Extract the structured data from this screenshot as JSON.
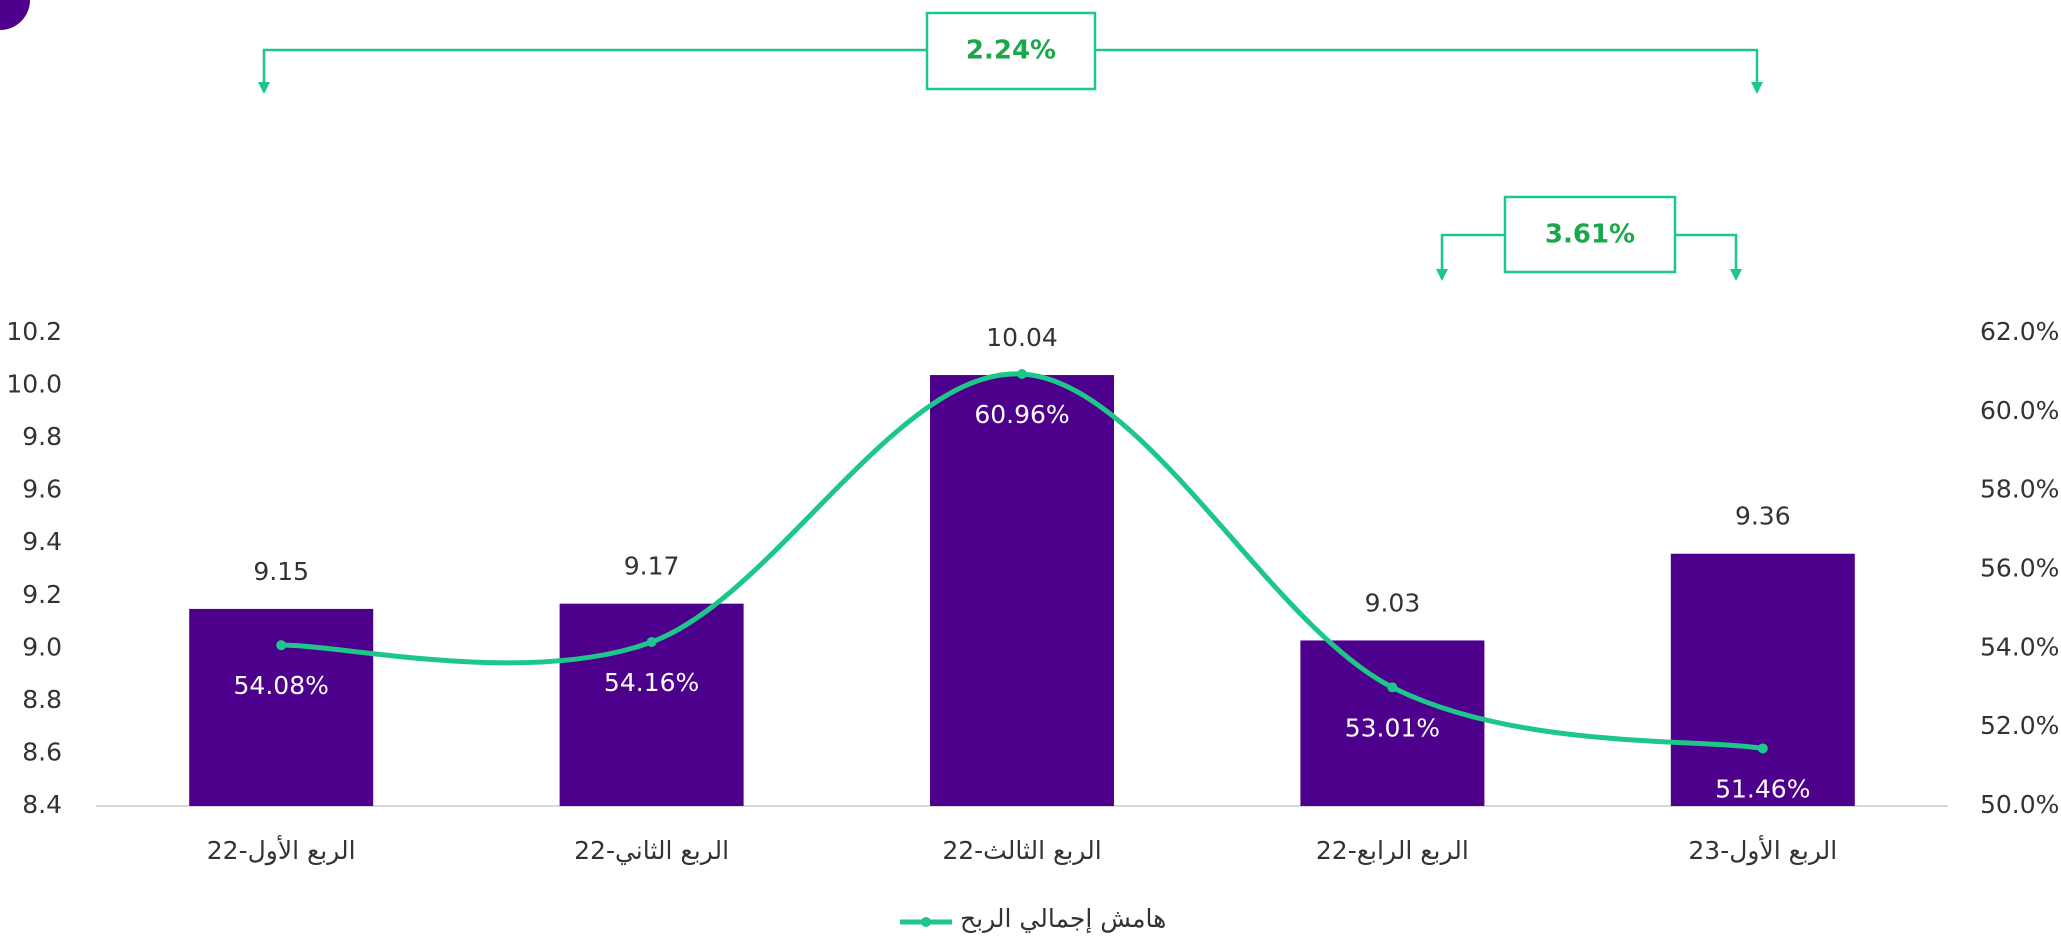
{
  "chart_data": {
    "type": "bar",
    "categories": [
      "الربع الأول-22",
      "الربع الثاني-22",
      "الربع الثالث-22",
      "الربع الرابع-22",
      "الربع الأول-23"
    ],
    "series": [
      {
        "type": "bar",
        "color": "#4d008c",
        "values": [
          9.15,
          9.17,
          10.04,
          9.03,
          9.36
        ]
      },
      {
        "type": "line",
        "name": "هامش إجمالي الربح",
        "color": "#1dc78a",
        "axis": "y2",
        "values": [
          54.08,
          54.16,
          60.96,
          53.01,
          51.46
        ],
        "value_labels": [
          "54.08%",
          "54.16%",
          "60.96%",
          "53.01%",
          "51.46%"
        ]
      }
    ],
    "ylim": [
      8.4,
      10.2
    ],
    "yticks": [
      8.4,
      8.6,
      8.8,
      {
        "value": 9.0,
        "label": "9.0"
      },
      9.2,
      9.4,
      9.6,
      9.8,
      {
        "value": 10.0,
        "label": "10.0"
      },
      10.2
    ],
    "y2lim": [
      50,
      62
    ],
    "y2ticks": [
      {
        "value": 50,
        "label": "50.0%"
      },
      {
        "value": 52,
        "label": "52.0%"
      },
      {
        "value": 54,
        "label": "54.0%"
      },
      {
        "value": 56,
        "label": "56.0%"
      },
      {
        "value": 58,
        "label": "58.0%"
      },
      {
        "value": 60,
        "label": "60.0%"
      },
      {
        "value": 62,
        "label": "62.0%"
      }
    ],
    "annotations": [
      "2.24%",
      "3.61%"
    ]
  }
}
